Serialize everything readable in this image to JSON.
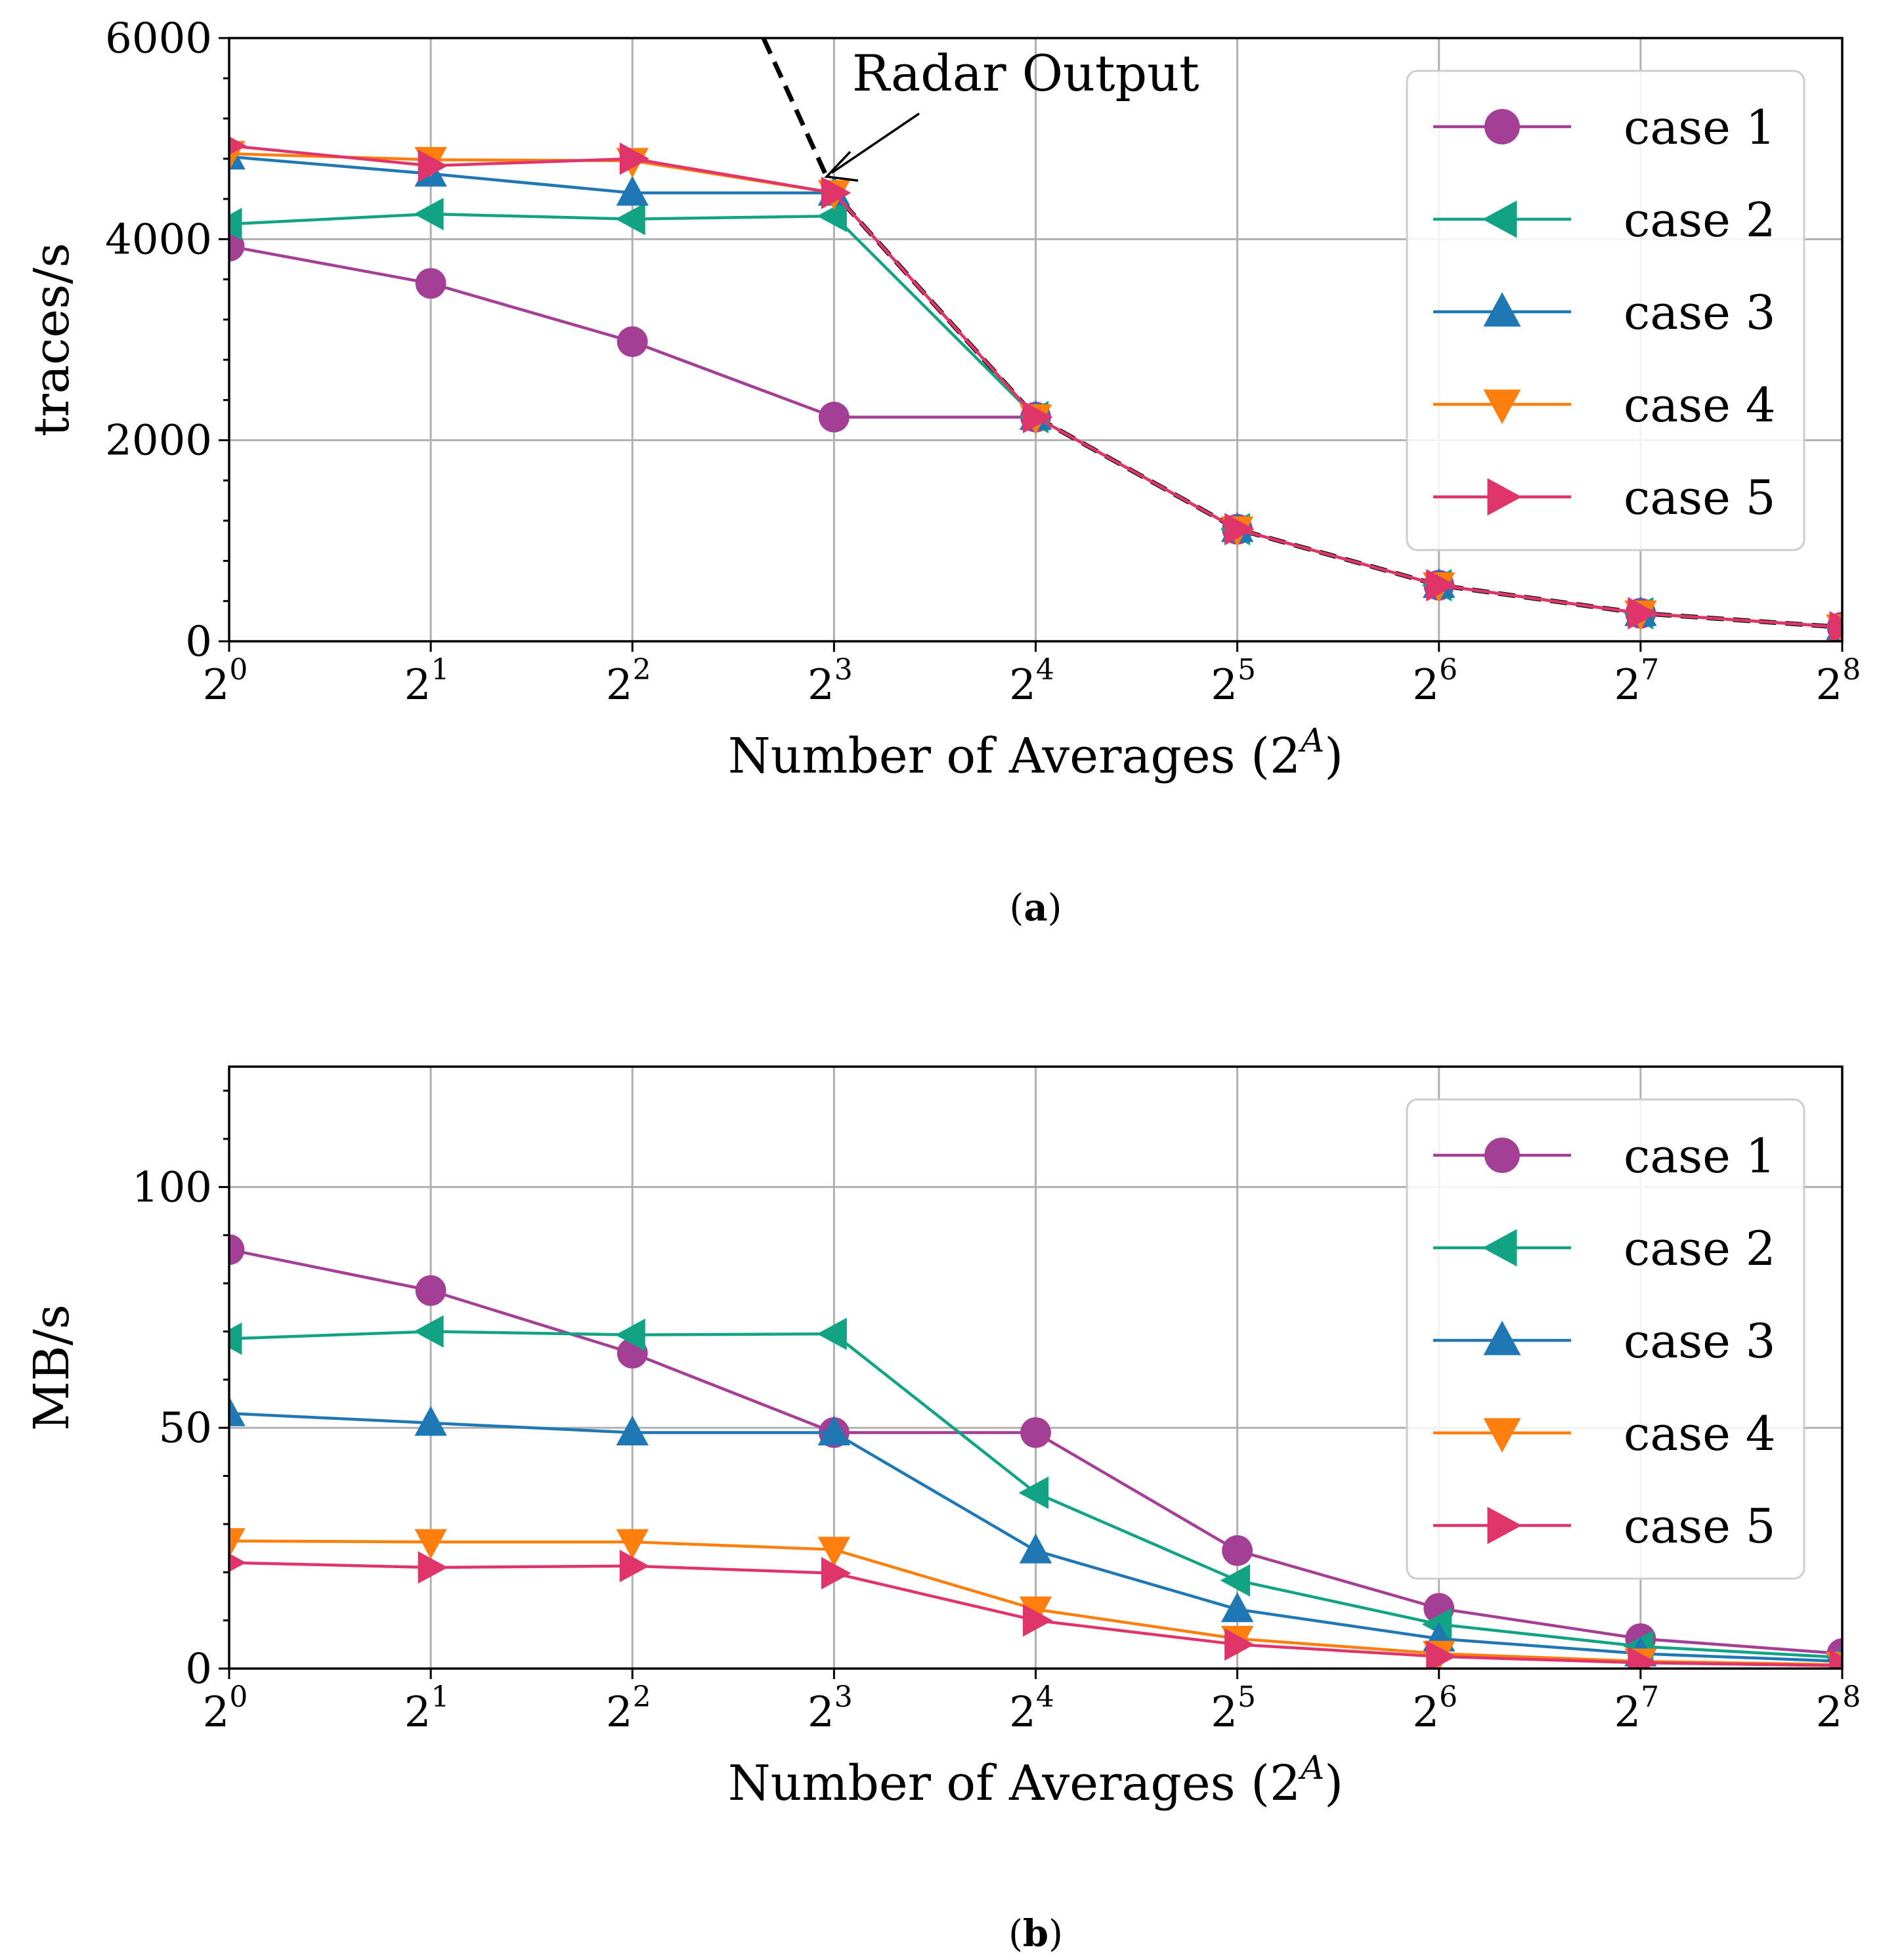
{
  "chart_data": [
    {
      "type": "line",
      "panel_caption": "a",
      "xlabel": "Number of Averages (2^A)",
      "ylabel": "traces/s",
      "x_ticks": [
        "0",
        "1",
        "2",
        "3",
        "4",
        "5",
        "6",
        "7",
        "8"
      ],
      "x_tick_base": "2",
      "x": [
        0,
        1,
        2,
        3,
        4,
        5,
        6,
        7,
        8
      ],
      "xlim": [
        0,
        8
      ],
      "ylim": [
        0,
        6000
      ],
      "y_ticks": [
        0,
        2000,
        4000,
        6000
      ],
      "grid": true,
      "legend_position": "upper-right",
      "series": [
        {
          "name": "case 1",
          "color": "#a43f96",
          "marker": "circle",
          "values": [
            3930,
            3560,
            2980,
            2230,
            2230,
            1115,
            558,
            279,
            140
          ]
        },
        {
          "name": "case 2",
          "color": "#12a384",
          "marker": "triangle-left",
          "values": [
            4150,
            4250,
            4200,
            4230,
            2230,
            1115,
            558,
            279,
            140
          ]
        },
        {
          "name": "case 3",
          "color": "#1f77b4",
          "marker": "triangle-up",
          "values": [
            4820,
            4650,
            4460,
            4460,
            2230,
            1115,
            558,
            279,
            140
          ]
        },
        {
          "name": "case 4",
          "color": "#ff7f0e",
          "marker": "triangle-down",
          "values": [
            4850,
            4790,
            4780,
            4460,
            2230,
            1115,
            558,
            279,
            140
          ]
        },
        {
          "name": "case 5",
          "color": "#e0356b",
          "marker": "triangle-right",
          "values": [
            4930,
            4730,
            4800,
            4460,
            2230,
            1115,
            558,
            279,
            140
          ]
        }
      ],
      "reference_line": {
        "x": [
          2.65,
          3,
          4,
          5,
          6,
          7,
          8
        ],
        "values": [
          6000,
          4460,
          2230,
          1115,
          558,
          279,
          140
        ]
      },
      "annotation": {
        "text": "Radar Output",
        "arrow_to": [
          2.95,
          5000
        ]
      }
    },
    {
      "type": "line",
      "panel_caption": "b",
      "xlabel": "Number of Averages (2^A)",
      "ylabel": "MB/s",
      "x_ticks": [
        "0",
        "1",
        "2",
        "3",
        "4",
        "5",
        "6",
        "7",
        "8"
      ],
      "x_tick_base": "2",
      "x": [
        0,
        1,
        2,
        3,
        4,
        5,
        6,
        7,
        8
      ],
      "xlim": [
        0,
        8
      ],
      "ylim": [
        0,
        125
      ],
      "y_ticks": [
        0,
        50,
        100
      ],
      "grid": true,
      "legend_position": "upper-right",
      "series": [
        {
          "name": "case 1",
          "color": "#a43f96",
          "marker": "circle",
          "values": [
            87,
            78.5,
            65.5,
            49,
            49,
            24.5,
            12.5,
            6.2,
            3.1
          ]
        },
        {
          "name": "case 2",
          "color": "#12a384",
          "marker": "triangle-left",
          "values": [
            68.5,
            70,
            69.3,
            69.5,
            36.5,
            18.3,
            9.2,
            4.6,
            2.3
          ]
        },
        {
          "name": "case 3",
          "color": "#1f77b4",
          "marker": "triangle-up",
          "values": [
            53,
            51,
            49,
            49,
            24.5,
            12.3,
            6.2,
            3.1,
            1.5
          ]
        },
        {
          "name": "case 4",
          "color": "#ff7f0e",
          "marker": "triangle-down",
          "values": [
            26.5,
            26.3,
            26.3,
            24.7,
            12.3,
            6.2,
            3.1,
            1.5,
            0.8
          ]
        },
        {
          "name": "case 5",
          "color": "#e0356b",
          "marker": "triangle-right",
          "values": [
            22,
            21,
            21.3,
            19.8,
            10,
            5,
            2.5,
            1.2,
            0.6
          ]
        }
      ]
    }
  ]
}
